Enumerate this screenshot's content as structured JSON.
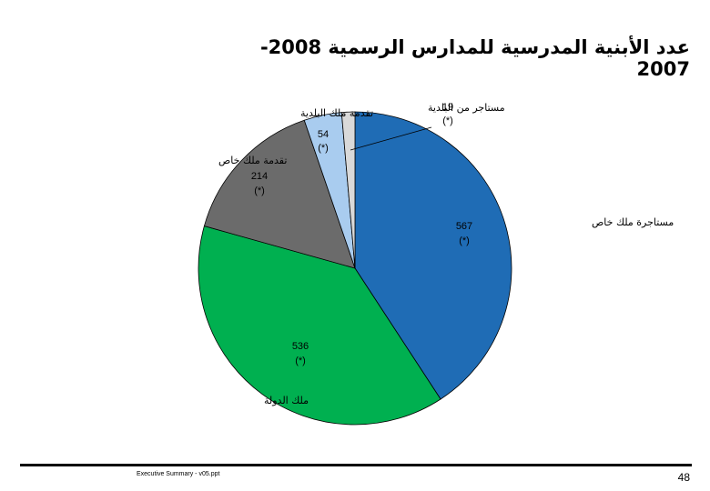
{
  "slide": {
    "title": "عدد الأبنية المدرسية للمدارس الرسمية 2008-2007",
    "footer_left": "Executive Summary - v05.ppt",
    "page_number": "48"
  },
  "chart_data": {
    "type": "pie",
    "title": "عدد الأبنية المدرسية للمدارس الرسمية 2008-2007",
    "slices": [
      {
        "label": "مستاجرة ملك خاص",
        "value": 567,
        "value_label": "567",
        "note": "(*)",
        "color": "#1f6cb5"
      },
      {
        "label": "ملك الدولة",
        "value": 536,
        "value_label": "536",
        "note": "(*)",
        "color": "#00b050"
      },
      {
        "label": "تقدمة ملك خاص",
        "value": 214,
        "value_label": "214",
        "note": "(*)",
        "color": "#6b6b6b"
      },
      {
        "label": "تقدمة ملك البلدية",
        "value": 54,
        "value_label": "54",
        "note": "(*)",
        "color": "#a9ccef"
      },
      {
        "label": "مستاجر من البلدية",
        "value": 19,
        "value_label": "19",
        "note": "(*)",
        "color": "#d9d9d9"
      }
    ]
  }
}
